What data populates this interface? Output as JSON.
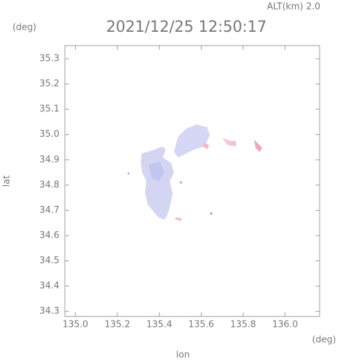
{
  "chart_data": {
    "type": "map",
    "title": "2021/12/25 12:50:17",
    "altitude_label": "ALT(km) 2.0",
    "x_label": "lon",
    "y_label": "lat",
    "x_unit": "(deg)",
    "y_unit": "(deg)",
    "xlim": [
      134.95,
      136.165
    ],
    "xticks": [
      {
        "value": 135.0,
        "label": "135.0"
      },
      135.2,
      135.4,
      135.6,
      135.8,
      {
        "value": 136.0,
        "label": "136.0"
      }
    ],
    "ylim": [
      34.28,
      35.352
    ],
    "yticks": [
      35.3,
      35.2,
      35.1,
      {
        "value": 35.0,
        "label": "35.0"
      },
      34.9,
      34.8,
      34.7,
      34.6,
      34.5,
      34.4,
      34.3
    ]
  }
}
